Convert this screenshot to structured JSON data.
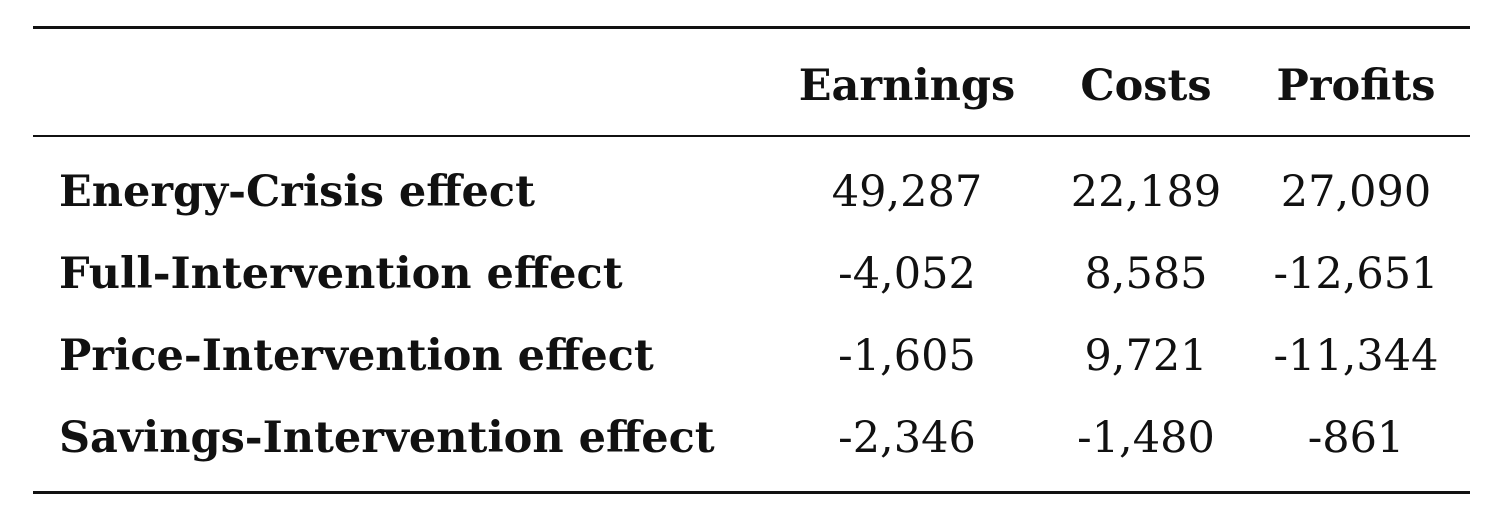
{
  "table": {
    "columns": [
      "",
      "Earnings",
      "Costs",
      "Profits"
    ],
    "rows": [
      {
        "label": "Energy-Crisis effect",
        "values": [
          "49,287",
          "22,189",
          "27,090"
        ]
      },
      {
        "label": "Full-Intervention effect",
        "values": [
          "-4,052",
          "8,585",
          "-12,651"
        ]
      },
      {
        "label": "Price-Intervention effect",
        "values": [
          "-1,605",
          "9,721",
          "-11,344"
        ]
      },
      {
        "label": "Savings-Intervention effect",
        "values": [
          "-2,346",
          "-1,480",
          "-861"
        ]
      }
    ]
  }
}
